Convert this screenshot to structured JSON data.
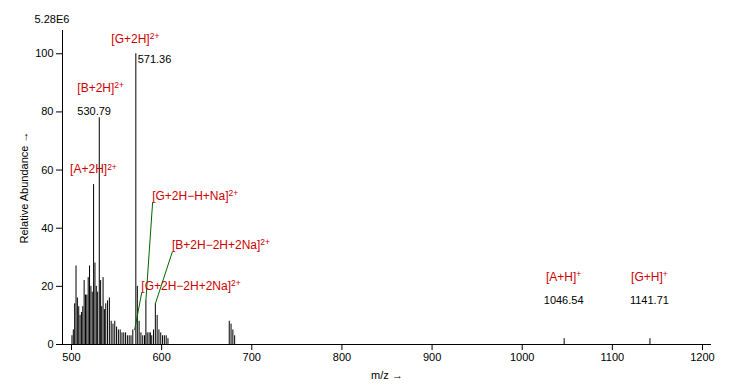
{
  "chart_data": {
    "type": "spectrum",
    "subtitle": "5.28E6",
    "xlabel": "m/z",
    "ylabel": "Relative Abundance",
    "x": [
      500.5,
      502.0,
      503.5,
      505.0,
      506.5,
      508.0,
      509.5,
      511.0,
      512.5,
      514.0,
      515.5,
      517.0,
      518.5,
      520.0,
      521.5,
      523.0,
      524.5,
      526.0,
      527.5,
      529.0,
      530.79,
      532.3,
      533.5,
      535.0,
      536.5,
      538.0,
      540.0,
      542.0,
      544.0,
      546.0,
      548.0,
      550.0,
      552.0,
      554.0,
      556.0,
      558.0,
      560.0,
      562.0,
      564.0,
      566.0,
      568.0,
      571.36,
      573.0,
      575.0,
      577.0,
      579.0,
      581.0,
      582.5,
      584.0,
      586.0,
      587.5,
      589.0,
      591.0,
      593.0,
      595.0,
      597.0,
      599.0,
      601.0,
      603.0,
      605.0,
      607.0,
      675.0,
      677.0,
      679.0,
      681.0,
      1046.54,
      1141.71
    ],
    "values": [
      3,
      5,
      14,
      27,
      16,
      13,
      10,
      11,
      13,
      22,
      17,
      17,
      23,
      27,
      20,
      18,
      55,
      28,
      20,
      18,
      78,
      22,
      13,
      23,
      12,
      14,
      15,
      16,
      8,
      7,
      8,
      6,
      5,
      5,
      4,
      4,
      4,
      3,
      3,
      3,
      5,
      100,
      20,
      8,
      4,
      3,
      3,
      15,
      4,
      4,
      4,
      3,
      5,
      14,
      10,
      5,
      4,
      3,
      3,
      3,
      2,
      8,
      7,
      5,
      3,
      2,
      2
    ],
    "color": "black",
    "xlim": [
      490,
      1210
    ],
    "ylim": [
      0,
      108
    ],
    "xticks": [
      500,
      600,
      700,
      800,
      900,
      1000,
      1100,
      1200
    ],
    "yticks": [
      0,
      20,
      40,
      60,
      80,
      100
    ],
    "grid": false,
    "annotations": [
      {
        "text": "[G+2H]",
        "superscript": "2+",
        "x": 571.36,
        "y": 103,
        "color": "#cc0000"
      },
      {
        "text": "571.36",
        "x": 574,
        "y": 96,
        "color": "black"
      },
      {
        "text": "[B+2H]",
        "superscript": "2+",
        "x": 507,
        "y": 86,
        "color": "#cc0000"
      },
      {
        "text": "530.79",
        "x": 507,
        "y": 78,
        "color": "black"
      },
      {
        "text": "[A+2H]",
        "superscript": "2+",
        "x": 499,
        "y": 58,
        "color": "#cc0000"
      },
      {
        "text": "[A+H]",
        "superscript": "+",
        "x": 1046.54,
        "y": 21,
        "color": "#cc0000"
      },
      {
        "text": "1046.54",
        "x": 1046.54,
        "y": 13,
        "color": "black"
      },
      {
        "text": "[G+H]",
        "superscript": "+",
        "x": 1141.71,
        "y": 21,
        "color": "#cc0000"
      },
      {
        "text": "1141.71",
        "x": 1141.71,
        "y": 13,
        "color": "black"
      },
      {
        "text": "[G+2H−H+Na]",
        "superscript": "2+",
        "x": 590,
        "y": 49,
        "color": "#cc0000",
        "arrow_x": 582.5,
        "arrow_y": 15,
        "arrow_color": "#006400"
      },
      {
        "text": "[B+2H−2H+2Na]",
        "superscript": "2+",
        "x": 612,
        "y": 32,
        "color": "#cc0000",
        "arrow_x": 593.0,
        "arrow_y": 14,
        "arrow_color": "#006400"
      },
      {
        "text": "[G+2H−2H+2Na]",
        "superscript": "2+",
        "x": 578,
        "y": 18,
        "color": "#cc0000",
        "arrow_x": 570.0,
        "arrow_y": 5,
        "arrow_color": "#006400"
      }
    ]
  }
}
